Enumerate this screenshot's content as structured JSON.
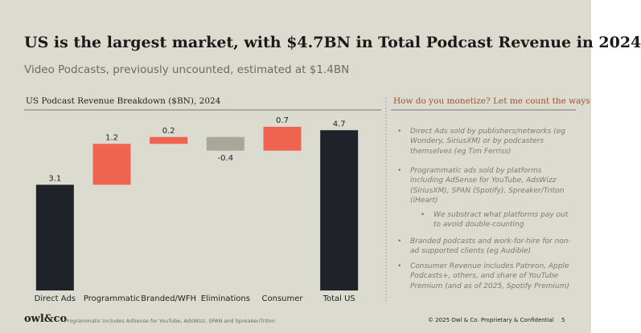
{
  "title": "US is the largest market, with $4.7BN in Total  Podcast Revenue in 2024",
  "subtitle": "Video Podcasts, previously uncounted, estimated at $1.4BN",
  "chart_data": {
    "type": "waterfall",
    "title": "US Podcast Revenue Breakdown ($BN), 2024",
    "categories": [
      "Direct Ads",
      "Programmatic",
      "Branded/WFH",
      "Eliminations",
      "Consumer",
      "Total US"
    ],
    "values": [
      3.1,
      1.2,
      0.2,
      -0.4,
      0.7,
      4.7
    ],
    "colors": {
      "total": "#1f2228",
      "increase": "#ef6351",
      "decrease": "#a8a899"
    }
  },
  "sidebar": {
    "heading": "How do you monetize? Let me count the ways",
    "bullets": [
      "Direct Ads sold by publishers/networks (eg Wondery, SiriusXM) or by podcasters themselves (eg Tim Ferriss)",
      "Programmatic ads sold by platforms including AdSense for YouTube, AdsWizz (SiriusXM), SPAN (Spotify), Spreaker/Triton (iHeart)",
      "We substract what platforms pay out to avoid double-counting",
      "Branded podcasts and work-for-hire for non-ad supported clients (eg Audible)",
      "Consumer Revenue includes Patreon, Apple Podcasts+, others, and share of YouTube Premium (and as of 2025, Spotify Premium)"
    ]
  },
  "footer": {
    "logo": "owl&co",
    "note": "Programmatic includes AdSense for YouTube, AdsWizz, SPAN and Spreaker/Triton",
    "copyright": "© 2025 Owl & Co. Proprietary & Confidential",
    "page": "5"
  }
}
